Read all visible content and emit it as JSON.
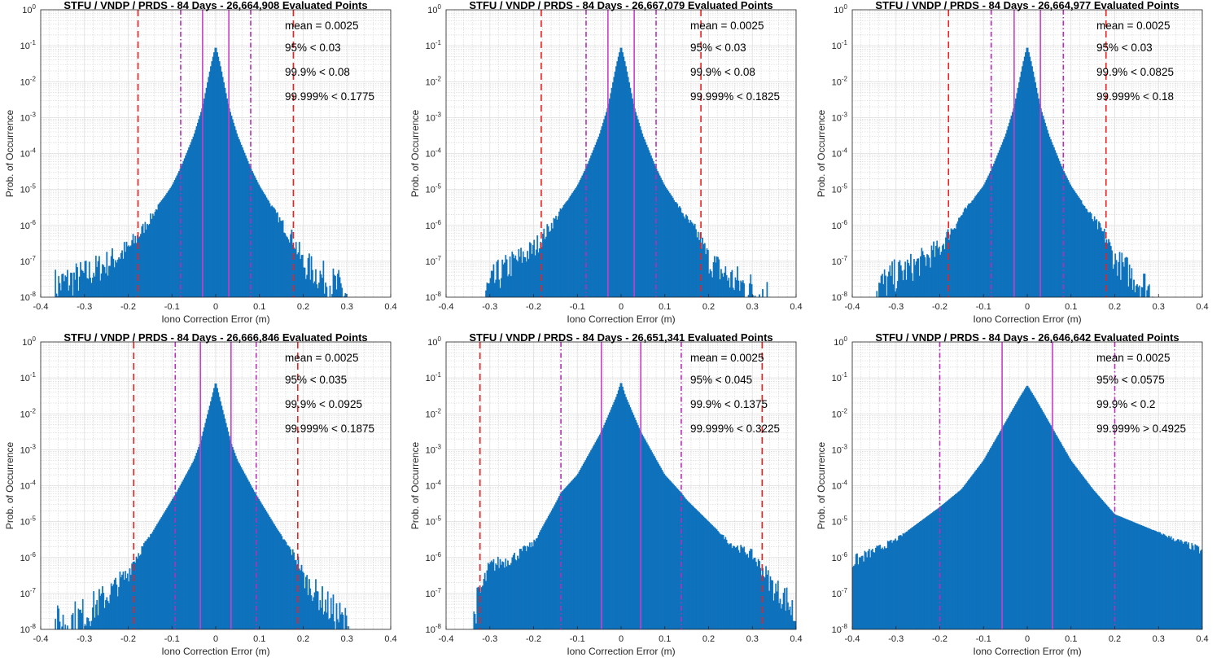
{
  "chart_data": [
    {
      "type": "area",
      "title": "STFU / VNDP / PRDS - 84 Days - 26,664,908 Evaluated Points",
      "xlabel": "Iono Correction Error (m)",
      "ylabel": "Prob. of Occurrence",
      "xlim": [
        -0.4,
        0.4
      ],
      "ylim": [
        1e-08,
        1
      ],
      "yscale": "log",
      "grid": "major+minor",
      "stats": [
        "mean = 0.0025",
        "95% < 0.03",
        "99.9% < 0.08",
        "99.999% < 0.1775"
      ],
      "lines": {
        "p95": 0.03,
        "p999": 0.08,
        "p99999": 0.1775
      },
      "envelope": {
        "x": [
          -0.37,
          -0.3,
          -0.25,
          -0.2,
          -0.18,
          -0.15,
          -0.1,
          -0.08,
          -0.05,
          -0.03,
          -0.01,
          0,
          0.01,
          0.03,
          0.05,
          0.08,
          0.1,
          0.15,
          0.18,
          0.2,
          0.25,
          0.3
        ],
        "log10_p": [
          -7.6,
          -7.3,
          -7.0,
          -6.6,
          -6.3,
          -5.8,
          -4.9,
          -4.4,
          -3.5,
          -2.7,
          -1.5,
          -1.0,
          -1.5,
          -2.7,
          -3.5,
          -4.4,
          -4.9,
          -5.9,
          -6.4,
          -7.0,
          -7.4,
          -7.8
        ]
      }
    },
    {
      "type": "area",
      "title": "STFU / VNDP / PRDS - 84 Days - 26,667,079 Evaluated Points",
      "xlabel": "Iono Correction Error (m)",
      "ylabel": "Prob. of Occurrence",
      "xlim": [
        -0.4,
        0.4
      ],
      "ylim": [
        1e-08,
        1
      ],
      "yscale": "log",
      "grid": "major+minor",
      "stats": [
        "mean = 0.0025",
        "95% < 0.03",
        "99.9% < 0.08",
        "99.999% < 0.1825"
      ],
      "lines": {
        "p95": 0.03,
        "p999": 0.08,
        "p99999": 0.1825
      },
      "envelope": {
        "x": [
          -0.31,
          -0.28,
          -0.25,
          -0.2,
          -0.18,
          -0.15,
          -0.1,
          -0.08,
          -0.05,
          -0.03,
          -0.01,
          0,
          0.01,
          0.03,
          0.05,
          0.08,
          0.1,
          0.15,
          0.18,
          0.2,
          0.25,
          0.3,
          0.34
        ],
        "log10_p": [
          -7.8,
          -7.3,
          -7.0,
          -6.6,
          -6.3,
          -5.8,
          -4.9,
          -4.4,
          -3.5,
          -2.7,
          -1.5,
          -1.0,
          -1.5,
          -2.7,
          -3.5,
          -4.4,
          -4.9,
          -5.8,
          -6.3,
          -6.9,
          -7.4,
          -7.7,
          -7.9
        ]
      }
    },
    {
      "type": "area",
      "title": "STFU / VNDP / PRDS - 84 Days - 26,664,977 Evaluated Points",
      "xlabel": "Iono Correction Error (m)",
      "ylabel": "Prob. of Occurrence",
      "xlim": [
        -0.4,
        0.4
      ],
      "ylim": [
        1e-08,
        1
      ],
      "yscale": "log",
      "grid": "major+minor",
      "stats": [
        "mean = 0.0025",
        "95% < 0.03",
        "99.9% < 0.0825",
        "99.999% < 0.18"
      ],
      "lines": {
        "p95": 0.03,
        "p999": 0.0825,
        "p99999": 0.18
      },
      "envelope": {
        "x": [
          -0.35,
          -0.3,
          -0.25,
          -0.2,
          -0.18,
          -0.15,
          -0.1,
          -0.08,
          -0.05,
          -0.03,
          -0.01,
          0,
          0.01,
          0.03,
          0.05,
          0.08,
          0.1,
          0.15,
          0.18,
          0.2,
          0.25,
          0.29
        ],
        "log10_p": [
          -7.7,
          -7.3,
          -7.0,
          -6.6,
          -6.2,
          -5.7,
          -4.9,
          -4.4,
          -3.5,
          -2.7,
          -1.5,
          -1.0,
          -1.5,
          -2.7,
          -3.5,
          -4.4,
          -4.9,
          -5.8,
          -6.3,
          -6.9,
          -7.4,
          -7.8
        ]
      }
    },
    {
      "type": "area",
      "title": "STFU / VNDP / PRDS - 84 Days - 26,666,846 Evaluated Points",
      "xlabel": "Iono Correction Error (m)",
      "ylabel": "Prob. of Occurrence",
      "xlim": [
        -0.4,
        0.4
      ],
      "ylim": [
        1e-08,
        1
      ],
      "yscale": "log",
      "grid": "major+minor",
      "stats": [
        "mean = 0.0025",
        "95% < 0.035",
        "99.9% < 0.0925",
        "99.999% < 0.1875"
      ],
      "lines": {
        "p95": 0.035,
        "p999": 0.0925,
        "p99999": 0.1875
      },
      "envelope": {
        "x": [
          -0.37,
          -0.3,
          -0.25,
          -0.2,
          -0.19,
          -0.15,
          -0.1,
          -0.09,
          -0.05,
          -0.035,
          -0.01,
          0,
          0.01,
          0.035,
          0.05,
          0.09,
          0.1,
          0.15,
          0.19,
          0.2,
          0.25,
          0.31
        ],
        "log10_p": [
          -7.8,
          -7.5,
          -7.0,
          -6.4,
          -6.1,
          -5.4,
          -4.4,
          -4.2,
          -3.3,
          -2.8,
          -1.6,
          -1.1,
          -1.6,
          -2.8,
          -3.3,
          -4.2,
          -4.4,
          -5.4,
          -6.1,
          -6.5,
          -7.2,
          -7.9
        ]
      }
    },
    {
      "type": "area",
      "title": "STFU / VNDP / PRDS - 84 Days - 26,651,341 Evaluated Points",
      "xlabel": "Iono Correction Error (m)",
      "ylabel": "Prob. of Occurrence",
      "xlim": [
        -0.4,
        0.4
      ],
      "ylim": [
        1e-08,
        1
      ],
      "yscale": "log",
      "grid": "major+minor",
      "stats": [
        "mean = 0.0025",
        "95% < 0.045",
        "99.9% < 0.1375",
        "99.999% < 0.3225"
      ],
      "lines": {
        "p95": 0.045,
        "p999": 0.1375,
        "p99999": 0.3225
      },
      "envelope": {
        "x": [
          -0.34,
          -0.33,
          -0.3,
          -0.25,
          -0.2,
          -0.15,
          -0.1375,
          -0.1,
          -0.045,
          -0.01,
          0,
          0.01,
          0.045,
          0.1,
          0.1375,
          0.15,
          0.2,
          0.25,
          0.3,
          0.33,
          0.35,
          0.38,
          0.4
        ],
        "log10_p": [
          -7.9,
          -7.2,
          -6.2,
          -6.0,
          -5.6,
          -4.5,
          -4.2,
          -3.7,
          -2.5,
          -1.5,
          -1.1,
          -1.5,
          -2.5,
          -3.7,
          -4.2,
          -4.4,
          -5.0,
          -5.6,
          -5.9,
          -6.4,
          -6.8,
          -7.1,
          -7.6
        ]
      }
    },
    {
      "type": "area",
      "title": "STFU / VNDP / PRDS - 84 Days - 26,646,642 Evaluated Points",
      "xlabel": "Iono Correction Error (m)",
      "ylabel": "Prob. of Occurrence",
      "xlim": [
        -0.4,
        0.4
      ],
      "ylim": [
        1e-08,
        1
      ],
      "yscale": "log",
      "grid": "major+minor",
      "stats": [
        "mean = 0.0025",
        "95% < 0.0575",
        "99.9% < 0.2",
        "99.999% > 0.4925"
      ],
      "lines": {
        "p95": 0.0575,
        "p999": 0.2,
        "p99999": 0.4925
      },
      "envelope": {
        "x": [
          -0.4,
          -0.3,
          -0.2,
          -0.15,
          -0.1,
          -0.0575,
          -0.02,
          0,
          0.02,
          0.0575,
          0.1,
          0.15,
          0.2,
          0.3,
          0.4
        ],
        "log10_p": [
          -6.1,
          -5.5,
          -4.6,
          -4.1,
          -3.3,
          -2.4,
          -1.6,
          -1.2,
          -1.6,
          -2.4,
          -3.3,
          -4.1,
          -4.8,
          -5.3,
          -5.8
        ]
      }
    }
  ],
  "colors": {
    "fill": "#0f72bd",
    "p95": "#c83fc8",
    "p999": "#b52fb5",
    "p99999": "#ee2020"
  }
}
